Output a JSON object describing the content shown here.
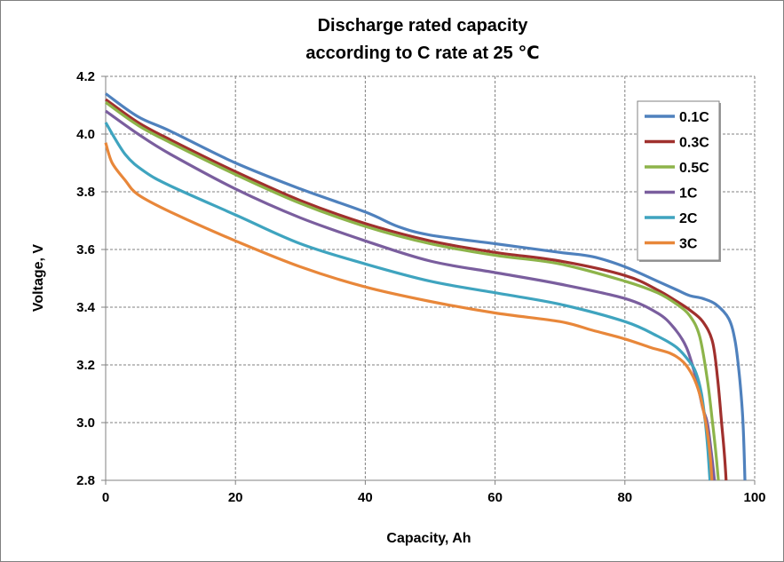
{
  "chart_data": {
    "type": "line",
    "title_lines": [
      "Discharge rated capacity",
      "according to C rate at 25 ℃"
    ],
    "xlabel": "Capacity, Ah",
    "ylabel": "Voltage, V",
    "xlim": [
      0,
      100
    ],
    "ylim": [
      2.8,
      4.2
    ],
    "xticks": [
      0,
      20,
      40,
      60,
      80,
      100
    ],
    "yticks": [
      2.8,
      3.0,
      3.2,
      3.4,
      3.6,
      3.8,
      4.0,
      4.2
    ],
    "xtick_labels": [
      "0",
      "20",
      "40",
      "60",
      "80",
      "100"
    ],
    "ytick_labels": [
      "2.8",
      "3.0",
      "3.2",
      "3.4",
      "3.6",
      "3.8",
      "4.0",
      "4.2"
    ],
    "grid": true,
    "legend_position": "top-right",
    "series": [
      {
        "name": "0.1C",
        "color": "#4F81BD",
        "x": [
          0,
          5,
          10,
          20,
          30,
          40,
          45,
          50,
          60,
          70,
          75,
          80,
          85,
          88,
          90,
          92,
          94,
          96,
          97,
          97.7,
          98.2,
          98.5
        ],
        "y": [
          4.14,
          4.06,
          4.01,
          3.9,
          3.81,
          3.73,
          3.68,
          3.65,
          3.62,
          3.59,
          3.575,
          3.54,
          3.49,
          3.46,
          3.44,
          3.43,
          3.41,
          3.36,
          3.28,
          3.15,
          3.0,
          2.8
        ]
      },
      {
        "name": "0.3C",
        "color": "#A0302D",
        "x": [
          0,
          5,
          10,
          20,
          30,
          40,
          50,
          60,
          70,
          80,
          85,
          88,
          90,
          92,
          93.5,
          94.3,
          94.9,
          95.3,
          95.6
        ],
        "y": [
          4.12,
          4.04,
          3.98,
          3.87,
          3.77,
          3.69,
          3.63,
          3.59,
          3.56,
          3.51,
          3.46,
          3.42,
          3.39,
          3.35,
          3.28,
          3.15,
          3.0,
          2.9,
          2.8
        ]
      },
      {
        "name": "0.5C",
        "color": "#8DB44A",
        "x": [
          0,
          5,
          10,
          20,
          30,
          40,
          50,
          60,
          70,
          80,
          85,
          88,
          90,
          91.5,
          92.7,
          93.5,
          94.0,
          94.4
        ],
        "y": [
          4.11,
          4.03,
          3.97,
          3.86,
          3.76,
          3.68,
          3.62,
          3.58,
          3.55,
          3.49,
          3.45,
          3.41,
          3.37,
          3.3,
          3.15,
          3.0,
          2.9,
          2.8
        ]
      },
      {
        "name": "1C",
        "color": "#7A5E9E",
        "x": [
          0,
          5,
          10,
          20,
          30,
          40,
          50,
          60,
          70,
          80,
          85,
          87.5,
          89.5,
          91,
          92,
          92.7,
          93.3,
          93.8
        ],
        "y": [
          4.08,
          4.0,
          3.93,
          3.81,
          3.71,
          3.63,
          3.56,
          3.52,
          3.48,
          3.43,
          3.38,
          3.33,
          3.26,
          3.15,
          3.05,
          3.0,
          2.9,
          2.8
        ]
      },
      {
        "name": "2C",
        "color": "#3FA4BF",
        "x": [
          0,
          3,
          6,
          10,
          20,
          30,
          40,
          50,
          60,
          70,
          80,
          85,
          88,
          90,
          91,
          91.8,
          92.4,
          92.8,
          93.1
        ],
        "y": [
          4.04,
          3.93,
          3.87,
          3.82,
          3.72,
          3.62,
          3.55,
          3.49,
          3.45,
          3.41,
          3.35,
          3.3,
          3.26,
          3.21,
          3.17,
          3.1,
          3.0,
          2.9,
          2.8
        ]
      },
      {
        "name": "3C",
        "color": "#E8873A",
        "x": [
          0,
          1,
          3,
          5,
          10,
          20,
          30,
          40,
          50,
          60,
          70,
          75,
          80,
          84,
          87,
          89,
          90.5,
          91.5,
          92.3,
          92.8,
          93.2,
          93.4
        ],
        "y": [
          3.97,
          3.9,
          3.84,
          3.79,
          3.73,
          3.63,
          3.54,
          3.47,
          3.42,
          3.38,
          3.35,
          3.32,
          3.29,
          3.26,
          3.24,
          3.21,
          3.16,
          3.1,
          3.02,
          2.95,
          2.87,
          2.8
        ]
      }
    ]
  }
}
